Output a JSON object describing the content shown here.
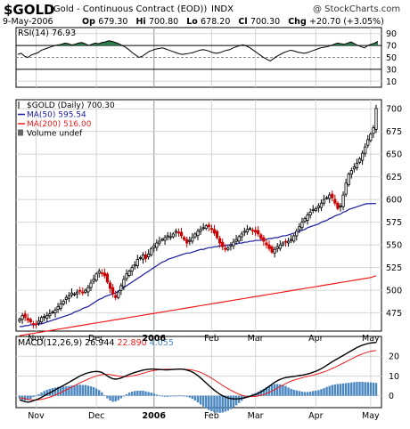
{
  "header": {
    "symbol": "$GOLD",
    "description": "(Gold - Continuous Contract (EOD))",
    "exchange": "INDX",
    "copyright": "@ StockCharts.com",
    "date": "9-May-2006",
    "quote": [
      {
        "label": "Op",
        "value": "679.30"
      },
      {
        "label": "Hi",
        "value": "700.80"
      },
      {
        "label": "Lo",
        "value": "678.20"
      },
      {
        "label": "Cl",
        "value": "700.30"
      },
      {
        "label": "Chg",
        "value": "+20.70 (+3.05%)"
      }
    ]
  },
  "colors": {
    "up": "#000000",
    "down": "#cc0000",
    "ma50": "#1a1aa0",
    "ma200": "#ee1c1c",
    "macd": "#000000",
    "signal": "#ee1c1c",
    "hist": "#4a86c0",
    "rsi_fill": "#2f7a4a",
    "grid": "#d4d4d4"
  },
  "chart_data": [
    {
      "type": "line",
      "title": "RSI(14) 76.93",
      "y_ticks": [
        "90",
        "70",
        "50",
        "30",
        "10"
      ],
      "ylim": [
        0,
        100
      ],
      "overbought": 70,
      "oversold": 30,
      "series": [
        {
          "name": "RSI(14)",
          "values": [
            55,
            57,
            52,
            50,
            54,
            56,
            58,
            62,
            64,
            66,
            68,
            70,
            71,
            72,
            74,
            73,
            71,
            72,
            74,
            75,
            73,
            70,
            72,
            74,
            73,
            75,
            76,
            78,
            77,
            75,
            73,
            70,
            67,
            63,
            58,
            54,
            50,
            52,
            56,
            60,
            62,
            64,
            65,
            66,
            64,
            62,
            60,
            58,
            56,
            55,
            56,
            57,
            58,
            60,
            62,
            63,
            62,
            60,
            58,
            57,
            58,
            60,
            62,
            63,
            66,
            68,
            70,
            71,
            69,
            66,
            62,
            58,
            54,
            50,
            47,
            44,
            48,
            52,
            55,
            58,
            60,
            62,
            61,
            59,
            58,
            57,
            58,
            60,
            62,
            64,
            66,
            67,
            68,
            70,
            72,
            74,
            73,
            72,
            74,
            76,
            73,
            70,
            68,
            66,
            70,
            72,
            74,
            76.93
          ]
        }
      ]
    },
    {
      "type": "candlestick",
      "title": "$GOLD (Daily) 700.30",
      "legend": [
        "$GOLD (Daily) 700.30",
        "MA(50) 595.54",
        "MA(200) 516.00",
        "Volume undef"
      ],
      "y_ticks": [
        "700",
        "675",
        "650",
        "625",
        "600",
        "575",
        "550",
        "525",
        "500",
        "475"
      ],
      "ylim": [
        455,
        710
      ],
      "x_ticks": [
        "Nov",
        "Dec",
        "2006",
        "Feb",
        "Mar",
        "Apr",
        "May"
      ],
      "x_tick_index": [
        6,
        28,
        49,
        70,
        86,
        108,
        128
      ],
      "closes": [
        468,
        472,
        470,
        467,
        465,
        463,
        462,
        466,
        470,
        471,
        472,
        474,
        476,
        478,
        482,
        485,
        488,
        492,
        494,
        497,
        496,
        498,
        499,
        497,
        500,
        503,
        508,
        512,
        518,
        521,
        519,
        516,
        509,
        502,
        496,
        492,
        498,
        505,
        512,
        518,
        521,
        525,
        528,
        534,
        536,
        539,
        535,
        540,
        546,
        549,
        552,
        554,
        556,
        558,
        560,
        559,
        562,
        565,
        563,
        560,
        556,
        552,
        555,
        558,
        562,
        565,
        567,
        569,
        571,
        570,
        567,
        563,
        558,
        552,
        548,
        545,
        547,
        550,
        553,
        556,
        559,
        562,
        565,
        567,
        568,
        566,
        564,
        562,
        557,
        554,
        550,
        546,
        542,
        545,
        548,
        550,
        552,
        553,
        554,
        556,
        560,
        565,
        570,
        575,
        579,
        583,
        586,
        589,
        590,
        593,
        596,
        600,
        602,
        605,
        602,
        596,
        590,
        593,
        605,
        618,
        628,
        632,
        636,
        640,
        645,
        651,
        658,
        666,
        672,
        679,
        700.3
      ],
      "ma50": [
        460,
        460,
        461,
        461,
        462,
        462,
        462,
        463,
        463,
        464,
        465,
        466,
        467,
        468,
        469,
        470,
        471,
        472,
        473,
        474,
        476,
        477,
        478,
        480,
        481,
        482,
        484,
        486,
        488,
        490,
        491,
        493,
        494,
        495,
        496,
        497,
        499,
        501,
        503,
        505,
        507,
        509,
        511,
        513,
        515,
        517,
        519,
        521,
        523,
        525,
        527,
        529,
        531,
        532,
        534,
        535,
        536,
        537,
        538,
        539,
        540,
        541,
        541,
        542,
        543,
        544,
        545,
        545,
        546,
        547,
        547,
        548,
        548,
        549,
        549,
        549,
        550,
        550,
        551,
        551,
        552,
        552,
        553,
        553,
        554,
        554,
        555,
        555,
        555,
        556,
        556,
        557,
        557,
        558,
        558,
        559,
        560,
        560,
        561,
        562,
        563,
        564,
        565,
        566,
        567,
        569,
        570,
        571,
        572,
        573,
        575,
        576,
        577,
        579,
        580,
        582,
        583,
        584,
        586,
        587,
        589,
        590,
        591,
        592,
        593,
        594,
        595,
        595.5,
        595.5,
        595.5,
        595.54
      ],
      "ma200": [
        450,
        450.5,
        451,
        451.5,
        452,
        452.5,
        453,
        453.5,
        454,
        454.5,
        455,
        455.5,
        456,
        456.5,
        457,
        457.5,
        458,
        458.5,
        459,
        459.5,
        460,
        460.5,
        461,
        461.5,
        462,
        462.5,
        463,
        463.5,
        464,
        464.5,
        465,
        465.5,
        466,
        466.5,
        467,
        467.5,
        468,
        468.5,
        469,
        469.5,
        470,
        470.5,
        471,
        471.5,
        472,
        472.5,
        473,
        473.5,
        474,
        474.5,
        475,
        475.5,
        476,
        476.5,
        477,
        477.5,
        478,
        478.5,
        479,
        479.5,
        480,
        480.5,
        481,
        481.5,
        482,
        482.5,
        483,
        483.5,
        484,
        484.5,
        485,
        485.5,
        486,
        486.5,
        487,
        487.5,
        488,
        488.5,
        489,
        489.5,
        490,
        490.5,
        491,
        491.5,
        492,
        492.5,
        493,
        493.5,
        494,
        494.5,
        495,
        495.5,
        496,
        496.5,
        497,
        497.5,
        498,
        498.5,
        499,
        499.5,
        500,
        500.5,
        501,
        501.5,
        502,
        502.5,
        503,
        503.5,
        504,
        504.5,
        505,
        505.5,
        506,
        506.5,
        507,
        507.5,
        508,
        508.5,
        509,
        509.5,
        510,
        510.5,
        511,
        511.5,
        512,
        512.5,
        513,
        513.5,
        514,
        515,
        516
      ]
    },
    {
      "type": "line",
      "title": "MACD(12,26,9)",
      "legend": [
        {
          "text": "MACD(12,26,9)",
          "value": "26.944"
        },
        {
          "text": "",
          "value": "22.890"
        },
        {
          "text": "",
          "value": "4.055"
        }
      ],
      "y_ticks": [
        "20",
        "10",
        "0"
      ],
      "ylim": [
        -6,
        30
      ],
      "x_ticks": [
        "Nov",
        "Dec",
        "2006",
        "Feb",
        "Mar",
        "Apr",
        "May"
      ],
      "series": [
        {
          "name": "MACD",
          "values": [
            -2,
            -2.5,
            -3,
            -3.2,
            -3,
            -2.5,
            -2,
            -1.5,
            -0.8,
            0,
            0.8,
            1.5,
            2.2,
            3,
            3.8,
            4.5,
            5.2,
            6,
            6.8,
            7.6,
            8.4,
            9.2,
            10,
            10.6,
            11.2,
            11.6,
            12,
            12.2,
            12.3,
            12.2,
            11.8,
            11,
            10,
            9.2,
            8.6,
            8.4,
            8.6,
            9,
            9.6,
            10.2,
            10.8,
            11.3,
            11.8,
            12.2,
            12.6,
            13,
            13.2,
            13.4,
            13.5,
            13.5,
            13.4,
            13.3,
            13.2,
            13.1,
            13.1,
            13.2,
            13.3,
            13.4,
            13.5,
            13.5,
            13.3,
            13,
            12.6,
            12,
            11.2,
            10.2,
            9,
            7.8,
            6.5,
            5.2,
            4,
            2.8,
            1.8,
            0.8,
            0,
            -0.6,
            -1.1,
            -1.4,
            -1.6,
            -1.6,
            -1.5,
            -1.3,
            -1,
            -0.7,
            -0.3,
            0.2,
            0.6,
            1.2,
            2,
            2.8,
            3.8,
            4.8,
            5.8,
            6.8,
            7.6,
            8.3,
            8.8,
            9.2,
            9.4,
            9.6,
            9.8,
            10,
            10.2,
            10.4,
            10.7,
            11,
            11.4,
            11.9,
            12.4,
            13,
            13.7,
            14.5,
            15.4,
            16.3,
            17.2,
            18,
            18.8,
            19.6,
            20.4,
            21.2,
            22,
            22.8,
            23.6,
            24.4,
            25,
            25.6,
            26,
            26.4,
            26.7,
            26.85,
            26.944
          ]
        },
        {
          "name": "Signal",
          "values": [
            -1,
            -1.2,
            -1.5,
            -1.8,
            -2,
            -2.1,
            -2.1,
            -2,
            -1.8,
            -1.5,
            -1.1,
            -0.7,
            -0.2,
            0.4,
            1,
            1.6,
            2.3,
            3,
            3.7,
            4.4,
            5.1,
            5.8,
            6.5,
            7.2,
            7.8,
            8.4,
            9,
            9.5,
            10,
            10.4,
            10.7,
            10.8,
            10.8,
            10.7,
            10.5,
            10.2,
            10,
            9.8,
            9.7,
            9.7,
            9.8,
            10,
            10.3,
            10.6,
            11,
            11.4,
            11.8,
            12.2,
            12.5,
            12.8,
            13,
            13.2,
            13.3,
            13.4,
            13.4,
            13.4,
            13.4,
            13.4,
            13.4,
            13.4,
            13.4,
            13.3,
            13.2,
            13,
            12.7,
            12.3,
            11.8,
            11.2,
            10.5,
            9.7,
            8.9,
            8,
            7.1,
            6.2,
            5.3,
            4.4,
            3.6,
            2.8,
            2.1,
            1.4,
            0.8,
            0.3,
            -0.1,
            -0.3,
            -0.4,
            -0.4,
            -0.3,
            -0.1,
            0.2,
            0.6,
            1.1,
            1.7,
            2.4,
            3.1,
            3.9,
            4.7,
            5.4,
            6.1,
            6.8,
            7.4,
            7.9,
            8.3,
            8.7,
            9.1,
            9.5,
            9.8,
            10.1,
            10.4,
            10.8,
            11.2,
            11.6,
            12.1,
            12.6,
            13.2,
            13.8,
            14.4,
            15.1,
            15.8,
            16.5,
            17.2,
            17.9,
            18.6,
            19.3,
            20,
            20.6,
            21.2,
            21.7,
            22.1,
            22.5,
            22.7,
            22.89
          ]
        }
      ],
      "histogram": "MACD minus Signal"
    }
  ]
}
